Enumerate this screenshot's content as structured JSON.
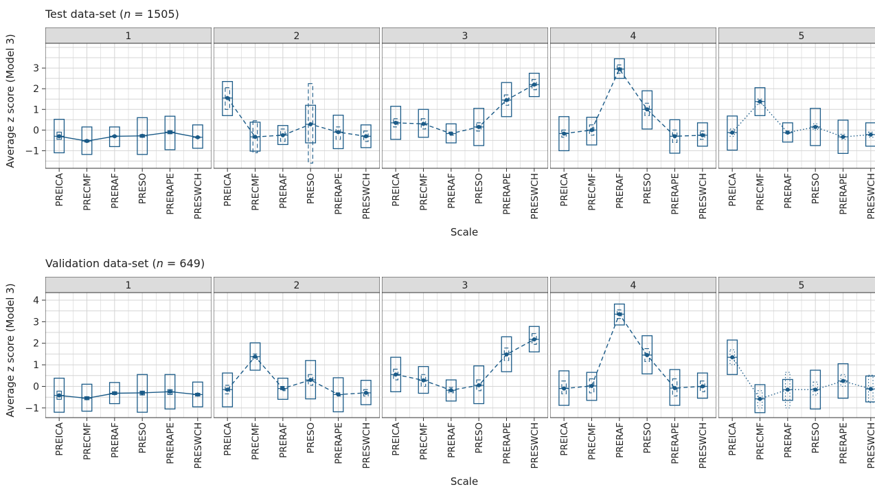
{
  "figure": {
    "xlabel": "Scale",
    "ylabel": "Average z score (Model 3)"
  },
  "chart_data": [
    {
      "type": "box",
      "title": "Test data-set (n = 1505)",
      "title_parts": {
        "prefix": "Test data-set (",
        "n": "n",
        "suffix": " = 1505)"
      },
      "xlabel": "Scale",
      "ylabel": "Average z score (Model 3)",
      "categories": [
        "PREICA",
        "PRECMF",
        "PRERAF",
        "PRESO",
        "PRERAPE",
        "PRESWCH"
      ],
      "yticks": [
        -1,
        0,
        1,
        2,
        3
      ],
      "ylim": [
        -1.85,
        4.2
      ],
      "grid": true,
      "panels": [
        {
          "label": "1",
          "line": "solid",
          "means": [
            -0.3,
            -0.53,
            -0.3,
            -0.28,
            -0.1,
            -0.35
          ],
          "box_low": [
            -1.1,
            -1.18,
            -0.8,
            -1.18,
            -0.95,
            -0.88
          ],
          "box_high": [
            0.52,
            0.15,
            0.15,
            0.6,
            0.67,
            0.25
          ],
          "inner_low": [
            -0.45,
            -0.58,
            -0.33,
            -0.35,
            -0.18,
            -0.38
          ],
          "inner_high": [
            -0.1,
            -0.48,
            -0.27,
            -0.22,
            -0.03,
            -0.32
          ]
        },
        {
          "label": "2",
          "line": "dashed",
          "means": [
            1.55,
            -0.33,
            -0.25,
            0.28,
            -0.1,
            -0.3
          ],
          "box_low": [
            0.7,
            -1.02,
            -0.7,
            -0.62,
            -0.9,
            -0.85
          ],
          "box_high": [
            2.35,
            0.38,
            0.22,
            1.2,
            0.72,
            0.25
          ],
          "inner_low": [
            1.0,
            -1.1,
            -0.55,
            -1.6,
            -0.45,
            -0.55
          ],
          "inner_high": [
            2.05,
            0.45,
            0.05,
            2.25,
            0.15,
            -0.05
          ]
        },
        {
          "label": "3",
          "line": "dashed",
          "means": [
            0.35,
            0.3,
            -0.17,
            0.15,
            1.45,
            2.2
          ],
          "box_low": [
            -0.45,
            -0.35,
            -0.62,
            -0.75,
            0.65,
            1.62
          ],
          "box_high": [
            1.15,
            1.0,
            0.3,
            1.05,
            2.3,
            2.75
          ],
          "inner_low": [
            0.15,
            0.05,
            -0.25,
            -0.05,
            1.2,
            1.95
          ],
          "inner_high": [
            0.55,
            0.55,
            -0.1,
            0.35,
            1.7,
            2.45
          ]
        },
        {
          "label": "4",
          "line": "dashed",
          "means": [
            -0.17,
            0.0,
            2.95,
            1.0,
            -0.3,
            -0.25
          ],
          "box_low": [
            -1.0,
            -0.72,
            2.5,
            0.05,
            -1.12,
            -0.78
          ],
          "box_high": [
            0.65,
            0.62,
            3.45,
            1.9,
            0.5,
            0.35
          ],
          "inner_low": [
            -0.35,
            -0.25,
            2.75,
            0.7,
            -0.6,
            -0.45
          ],
          "inner_high": [
            0.0,
            0.25,
            3.15,
            1.3,
            0.0,
            -0.05
          ]
        },
        {
          "label": "5",
          "line": "dotted",
          "means": [
            -0.12,
            1.38,
            -0.12,
            0.15,
            -0.33,
            -0.22
          ],
          "box_low": [
            -0.97,
            0.7,
            -0.58,
            -0.75,
            -1.13,
            -0.78
          ],
          "box_high": [
            0.68,
            2.05,
            0.35,
            1.05,
            0.48,
            0.35
          ],
          "inner_low": [
            -0.3,
            1.25,
            -0.2,
            0.0,
            -0.45,
            -0.35
          ],
          "inner_high": [
            0.05,
            1.5,
            -0.05,
            0.3,
            -0.2,
            -0.1
          ]
        }
      ]
    },
    {
      "type": "box",
      "title": "Validation data-set (n = 649)",
      "title_parts": {
        "prefix": "Validation data-set (",
        "n": "n",
        "suffix": " = 649)"
      },
      "xlabel": "Scale",
      "ylabel": "Average z score (Model 3)",
      "categories": [
        "PREICA",
        "PRECMF",
        "PRERAF",
        "PRESO",
        "PRERAPE",
        "PRESWCH"
      ],
      "yticks": [
        -1,
        0,
        1,
        2,
        3,
        4
      ],
      "ylim": [
        -1.45,
        4.35
      ],
      "grid": true,
      "panels": [
        {
          "label": "1",
          "line": "solid",
          "means": [
            -0.42,
            -0.55,
            -0.32,
            -0.3,
            -0.25,
            -0.38
          ],
          "box_low": [
            -1.2,
            -1.15,
            -0.8,
            -1.2,
            -1.05,
            -0.95
          ],
          "box_high": [
            0.38,
            0.1,
            0.18,
            0.55,
            0.55,
            0.2
          ],
          "inner_low": [
            -0.6,
            -0.62,
            -0.38,
            -0.4,
            -0.38,
            -0.45
          ],
          "inner_high": [
            -0.22,
            -0.48,
            -0.25,
            -0.22,
            -0.15,
            -0.32
          ]
        },
        {
          "label": "2",
          "line": "dashed",
          "means": [
            -0.15,
            1.38,
            -0.1,
            0.3,
            -0.38,
            -0.3
          ],
          "box_low": [
            -0.95,
            0.75,
            -0.6,
            -0.58,
            -1.18,
            -0.85
          ],
          "box_high": [
            0.62,
            2.02,
            0.38,
            1.2,
            0.4,
            0.28
          ],
          "inner_low": [
            -0.35,
            1.25,
            -0.2,
            0.05,
            -0.45,
            -0.45
          ],
          "inner_high": [
            0.05,
            1.5,
            0.0,
            0.55,
            -0.3,
            -0.15
          ]
        },
        {
          "label": "3",
          "line": "dashed",
          "means": [
            0.55,
            0.28,
            -0.18,
            0.05,
            1.48,
            2.18
          ],
          "box_low": [
            -0.25,
            -0.32,
            -0.68,
            -0.8,
            0.68,
            1.6
          ],
          "box_high": [
            1.35,
            0.92,
            0.3,
            0.95,
            2.3,
            2.78
          ],
          "inner_low": [
            0.3,
            0.0,
            -0.3,
            -0.2,
            1.2,
            1.95
          ],
          "inner_high": [
            0.8,
            0.55,
            -0.05,
            0.3,
            1.78,
            2.45
          ]
        },
        {
          "label": "4",
          "line": "dashed",
          "means": [
            -0.1,
            0.02,
            3.35,
            1.45,
            -0.08,
            0.0
          ],
          "box_low": [
            -0.88,
            -0.65,
            2.85,
            0.58,
            -0.88,
            -0.55
          ],
          "box_high": [
            0.72,
            0.65,
            3.82,
            2.35,
            0.78,
            0.62
          ],
          "inner_low": [
            -0.35,
            -0.3,
            3.15,
            1.15,
            -0.45,
            -0.25
          ],
          "inner_high": [
            0.25,
            0.35,
            3.55,
            1.75,
            0.35,
            0.25
          ]
        },
        {
          "label": "5",
          "line": "dotted",
          "means": [
            1.35,
            -0.58,
            -0.15,
            -0.15,
            0.25,
            -0.12
          ],
          "box_low": [
            0.55,
            -1.22,
            -0.65,
            -1.05,
            -0.55,
            -0.72
          ],
          "box_high": [
            2.15,
            0.08,
            0.32,
            0.75,
            1.05,
            0.48
          ],
          "inner_low": [
            1.0,
            -1.0,
            -1.0,
            -0.4,
            0.0,
            -0.75
          ],
          "inner_high": [
            1.7,
            -0.2,
            0.65,
            0.2,
            0.55,
            0.52
          ]
        }
      ]
    }
  ],
  "colors": {
    "line": "#1a5a87",
    "strip": "#dcdcdc",
    "grid": "#d4d4d4",
    "frame": "#333333",
    "text": "#222222"
  }
}
